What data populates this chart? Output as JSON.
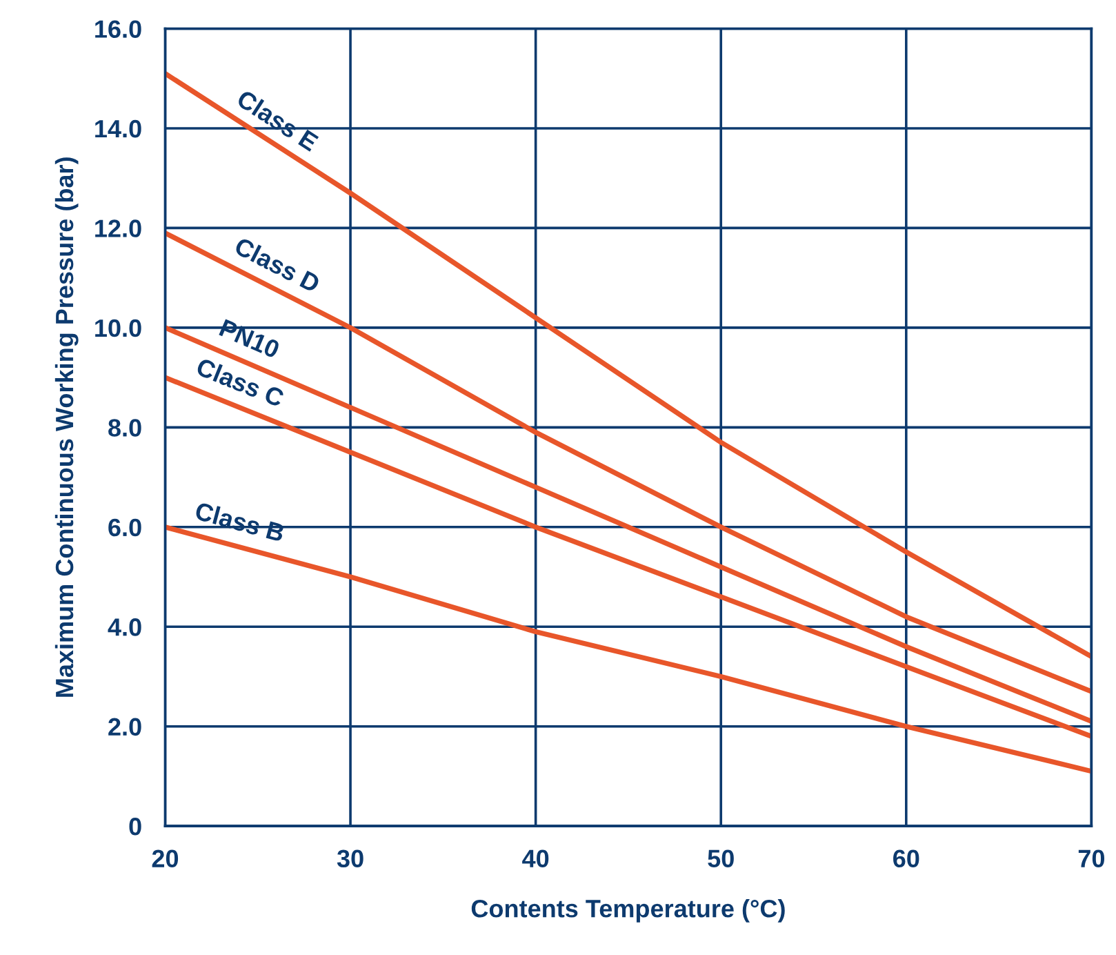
{
  "chart_data": {
    "type": "line",
    "xlabel": "Contents Temperature (°C)",
    "ylabel": "Maximum Continuous Working Pressure (bar)",
    "x": [
      20,
      30,
      40,
      50,
      60,
      70
    ],
    "series": [
      {
        "name": "Class E",
        "color": "#e8562a",
        "values": [
          15.1,
          12.7,
          10.2,
          7.7,
          5.5,
          3.4
        ]
      },
      {
        "name": "Class D",
        "color": "#e8562a",
        "values": [
          11.9,
          10.0,
          7.9,
          6.0,
          4.2,
          2.7
        ]
      },
      {
        "name": "PN10",
        "color": "#e8562a",
        "values": [
          10.0,
          8.4,
          6.8,
          5.2,
          3.6,
          2.1
        ]
      },
      {
        "name": "Class C",
        "color": "#e8562a",
        "values": [
          9.0,
          7.5,
          6.0,
          4.6,
          3.2,
          1.8
        ]
      },
      {
        "name": "Class B",
        "color": "#e8562a",
        "values": [
          6.0,
          5.0,
          3.9,
          3.0,
          2.0,
          1.1
        ]
      }
    ],
    "xlim": [
      20,
      70
    ],
    "ylim": [
      0,
      16
    ],
    "xticks": [
      20,
      30,
      40,
      50,
      60,
      70
    ],
    "yticks": [
      0,
      {
        "value": 2,
        "label": "2.0"
      },
      {
        "value": 4,
        "label": "4.0"
      },
      {
        "value": 6,
        "label": "6.0"
      },
      {
        "value": 8,
        "label": "8.0"
      },
      {
        "value": 10,
        "label": "10.0"
      },
      {
        "value": 12,
        "label": "12.0"
      },
      {
        "value": 14,
        "label": "14.0"
      },
      {
        "value": 16,
        "label": "16.0"
      }
    ],
    "grid": true,
    "legend": false,
    "marker": "none",
    "line_style": "solid"
  }
}
